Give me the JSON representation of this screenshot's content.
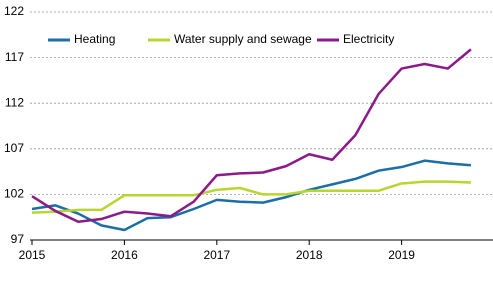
{
  "chart_data": {
    "type": "line",
    "categories": [
      "2015",
      null,
      null,
      null,
      "2016",
      null,
      null,
      null,
      "2017",
      null,
      null,
      null,
      "2018",
      null,
      null,
      null,
      "2019",
      null,
      null,
      null
    ],
    "series": [
      {
        "name": "Heating",
        "color": "#1b6fa6",
        "values": [
          100.4,
          100.8,
          99.9,
          98.6,
          98.1,
          99.4,
          99.5,
          100.4,
          101.4,
          101.2,
          101.1,
          101.7,
          102.5,
          103.1,
          103.7,
          104.6,
          105.0,
          105.7,
          105.4,
          105.2
        ]
      },
      {
        "name": "Water supply and sewage",
        "color": "#b9d531",
        "values": [
          100.0,
          100.1,
          100.3,
          100.3,
          101.9,
          101.9,
          101.9,
          101.9,
          102.5,
          102.7,
          102.0,
          102.0,
          102.4,
          102.4,
          102.4,
          102.4,
          103.2,
          103.4,
          103.4,
          103.3
        ]
      },
      {
        "name": "Electricity",
        "color": "#8c1a89",
        "values": [
          101.8,
          100.2,
          99.0,
          99.3,
          100.1,
          99.9,
          99.6,
          101.2,
          104.1,
          104.3,
          104.4,
          105.1,
          106.4,
          105.8,
          108.5,
          113.0,
          115.8,
          116.3,
          115.8,
          117.9
        ]
      }
    ],
    "ylim": [
      97,
      122
    ],
    "yticks": [
      97,
      102,
      107,
      112,
      117,
      122
    ],
    "grid": true
  }
}
